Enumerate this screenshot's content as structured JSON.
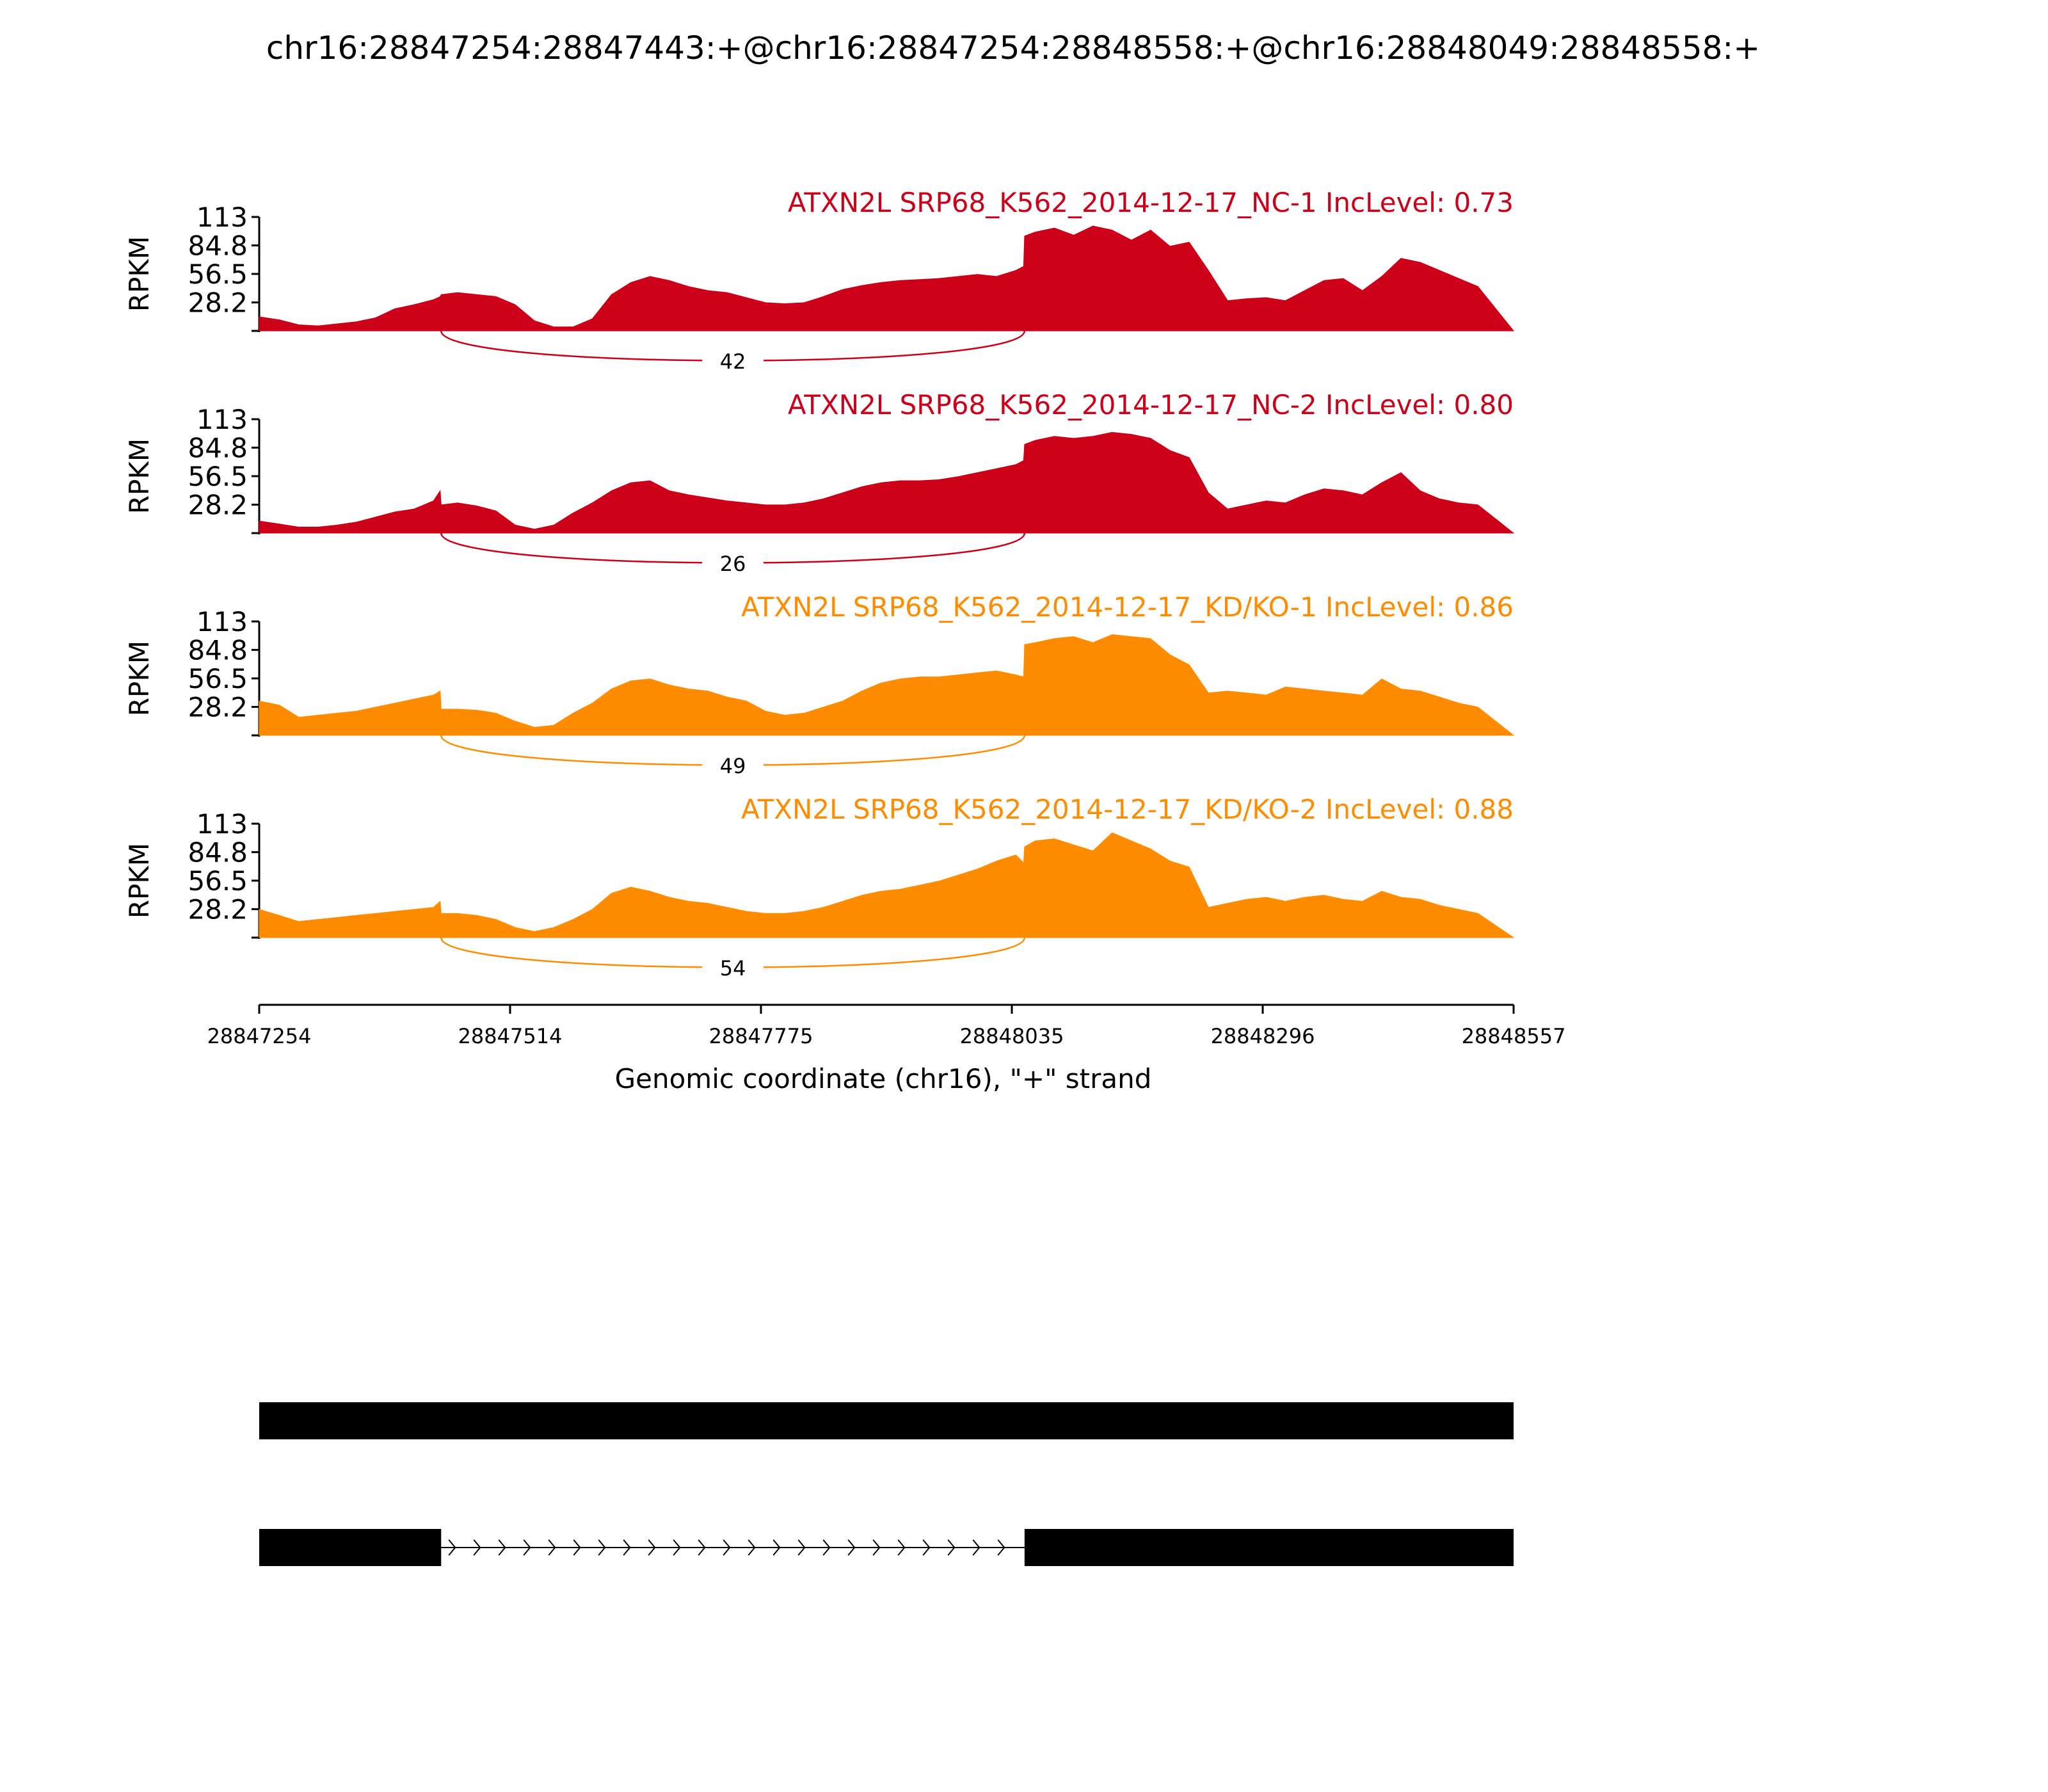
{
  "figure": {
    "title": "chr16:28847254:28847443:+@chr16:28847254:28848558:+@chr16:28848049:28848558:+"
  },
  "chart_data": {
    "type": "area",
    "title": "chr16:28847254:28847443:+@chr16:28847254:28848558:+@chr16:28848049:28848558:+",
    "xlabel": "Genomic coordinate (chr16), \"+\" strand",
    "ylabel": "RPKM",
    "xlim": [
      28847254,
      28848557
    ],
    "ylim": [
      0,
      113
    ],
    "x_ticks": [
      "28847254",
      "28847514",
      "28847775",
      "28848035",
      "28848296",
      "28848557"
    ],
    "y_ticks": [
      "28.2",
      "56.5",
      "84.8",
      "113"
    ],
    "grid": false,
    "colors": {
      "NC": "#cc0018",
      "KD": "#ff8c00"
    },
    "series": [
      {
        "name": "ATXN2L SRP68_K562_2014-12-17_NC-1 IncLevel: 0.73",
        "color": "#cc0018",
        "junction": {
          "label": "42",
          "from": 28847443,
          "to": 28848049
        },
        "x": [
          28847254,
          28847275,
          28847295,
          28847315,
          28847335,
          28847355,
          28847375,
          28847395,
          28847415,
          28847435,
          28847442,
          28847443,
          28847460,
          28847480,
          28847500,
          28847520,
          28847540,
          28847560,
          28847580,
          28847600,
          28847620,
          28847640,
          28847660,
          28847680,
          28847700,
          28847720,
          28847740,
          28847760,
          28847780,
          28847800,
          28847820,
          28847840,
          28847860,
          28847880,
          28847900,
          28847920,
          28847940,
          28847960,
          28847980,
          28848000,
          28848020,
          28848040,
          28848048,
          28848049,
          28848060,
          28848080,
          28848100,
          28848120,
          28848140,
          28848160,
          28848180,
          28848200,
          28848220,
          28848240,
          28848260,
          28848280,
          28848300,
          28848320,
          28848340,
          28848360,
          28848380,
          28848400,
          28848420,
          28848440,
          28848460,
          28848480,
          28848500,
          28848520,
          28848557
        ],
        "y": [
          14,
          11,
          6,
          5,
          7,
          9,
          13,
          22,
          26,
          31,
          34,
          36,
          38,
          36,
          34,
          26,
          10,
          4,
          4,
          12,
          36,
          48,
          54,
          50,
          44,
          40,
          38,
          33,
          28,
          27,
          28,
          34,
          41,
          45,
          48,
          50,
          51,
          52,
          54,
          56,
          54,
          60,
          64,
          94,
          98,
          102,
          95,
          104,
          100,
          90,
          100,
          84,
          88,
          60,
          30,
          32,
          33,
          30,
          40,
          50,
          52,
          40,
          54,
          72,
          68,
          60,
          52,
          44,
          0
        ]
      },
      {
        "name": "ATXN2L SRP68_K562_2014-12-17_NC-2 IncLevel: 0.80",
        "color": "#cc0018",
        "junction": {
          "label": "26",
          "from": 28847443,
          "to": 28848049
        },
        "x": [
          28847254,
          28847275,
          28847295,
          28847315,
          28847335,
          28847355,
          28847375,
          28847395,
          28847415,
          28847435,
          28847442,
          28847443,
          28847460,
          28847480,
          28847500,
          28847520,
          28847540,
          28847560,
          28847580,
          28847600,
          28847620,
          28847640,
          28847660,
          28847680,
          28847700,
          28847720,
          28847740,
          28847760,
          28847780,
          28847800,
          28847820,
          28847840,
          28847860,
          28847880,
          28847900,
          28847920,
          28847940,
          28847960,
          28847980,
          28848000,
          28848020,
          28848040,
          28848048,
          28848049,
          28848060,
          28848080,
          28848100,
          28848120,
          28848140,
          28848160,
          28848180,
          28848200,
          28848220,
          28848240,
          28848260,
          28848280,
          28848300,
          28848320,
          28848340,
          28848360,
          28848380,
          28848400,
          28848420,
          28848440,
          28848460,
          28848480,
          28848500,
          28848520,
          28848557
        ],
        "y": [
          12,
          9,
          6,
          6,
          8,
          11,
          16,
          21,
          24,
          32,
          42,
          28,
          30,
          27,
          22,
          8,
          4,
          8,
          20,
          30,
          42,
          50,
          52,
          42,
          38,
          35,
          32,
          30,
          28,
          28,
          30,
          34,
          40,
          46,
          50,
          52,
          52,
          53,
          56,
          60,
          64,
          68,
          72,
          88,
          92,
          96,
          94,
          96,
          100,
          98,
          94,
          82,
          75,
          40,
          24,
          28,
          32,
          30,
          38,
          44,
          42,
          38,
          50,
          60,
          42,
          34,
          30,
          28,
          0
        ]
      },
      {
        "name": "ATXN2L SRP68_K562_2014-12-17_KD/KO-1 IncLevel: 0.86",
        "color": "#ff8c00",
        "junction": {
          "label": "49",
          "from": 28847443,
          "to": 28848049
        },
        "x": [
          28847254,
          28847275,
          28847295,
          28847315,
          28847335,
          28847355,
          28847375,
          28847395,
          28847415,
          28847435,
          28847442,
          28847443,
          28847460,
          28847480,
          28847500,
          28847520,
          28847540,
          28847560,
          28847580,
          28847600,
          28847620,
          28847640,
          28847660,
          28847680,
          28847700,
          28847720,
          28847740,
          28847760,
          28847780,
          28847800,
          28847820,
          28847840,
          28847860,
          28847880,
          28847900,
          28847920,
          28847940,
          28847960,
          28847980,
          28848000,
          28848020,
          28848040,
          28848048,
          28848049,
          28848060,
          28848080,
          28848100,
          28848120,
          28848140,
          28848160,
          28848180,
          28848200,
          28848220,
          28848240,
          28848260,
          28848280,
          28848300,
          28848320,
          28848340,
          28848360,
          28848380,
          28848400,
          28848420,
          28848440,
          28848460,
          28848480,
          28848500,
          28848520,
          28848557
        ],
        "y": [
          34,
          30,
          18,
          20,
          22,
          24,
          28,
          32,
          36,
          40,
          44,
          26,
          26,
          25,
          22,
          14,
          8,
          10,
          22,
          32,
          46,
          54,
          56,
          50,
          46,
          44,
          38,
          34,
          24,
          20,
          22,
          28,
          34,
          44,
          52,
          56,
          58,
          58,
          60,
          62,
          64,
          60,
          58,
          90,
          92,
          96,
          98,
          92,
          100,
          98,
          96,
          80,
          70,
          42,
          44,
          42,
          40,
          48,
          46,
          44,
          42,
          40,
          56,
          46,
          44,
          38,
          32,
          28,
          0
        ]
      },
      {
        "name": "ATXN2L SRP68_K562_2014-12-17_KD/KO-2 IncLevel: 0.88",
        "color": "#ff8c00",
        "junction": {
          "label": "54",
          "from": 28847443,
          "to": 28848049
        },
        "x": [
          28847254,
          28847275,
          28847295,
          28847315,
          28847335,
          28847355,
          28847375,
          28847395,
          28847415,
          28847435,
          28847442,
          28847443,
          28847460,
          28847480,
          28847500,
          28847520,
          28847540,
          28847560,
          28847580,
          28847600,
          28847620,
          28847640,
          28847660,
          28847680,
          28847700,
          28847720,
          28847740,
          28847760,
          28847780,
          28847800,
          28847820,
          28847840,
          28847860,
          28847880,
          28847900,
          28847920,
          28847940,
          28847960,
          28847980,
          28848000,
          28848020,
          28848040,
          28848048,
          28848049,
          28848060,
          28848080,
          28848100,
          28848120,
          28848140,
          28848160,
          28848180,
          28848200,
          28848220,
          28848240,
          28848260,
          28848280,
          28848300,
          28848320,
          28848340,
          28848360,
          28848380,
          28848400,
          28848420,
          28848440,
          28848460,
          28848480,
          28848500,
          28848520,
          28848557
        ],
        "y": [
          28,
          22,
          16,
          18,
          20,
          22,
          24,
          26,
          28,
          30,
          36,
          24,
          24,
          22,
          18,
          10,
          6,
          10,
          18,
          28,
          44,
          50,
          46,
          40,
          36,
          34,
          30,
          26,
          24,
          24,
          26,
          30,
          36,
          42,
          46,
          48,
          52,
          56,
          62,
          68,
          76,
          82,
          74,
          90,
          96,
          98,
          92,
          86,
          104,
          96,
          88,
          76,
          70,
          30,
          34,
          38,
          40,
          36,
          40,
          42,
          38,
          36,
          46,
          40,
          38,
          32,
          28,
          24,
          0
        ]
      }
    ],
    "gene_model": {
      "transcripts": [
        {
          "exons": [
            [
              28847254,
              28848557
            ]
          ]
        },
        {
          "exons": [
            [
              28847254,
              28847443
            ],
            [
              28848049,
              28848557
            ]
          ],
          "intron_strand": "+"
        }
      ]
    }
  }
}
